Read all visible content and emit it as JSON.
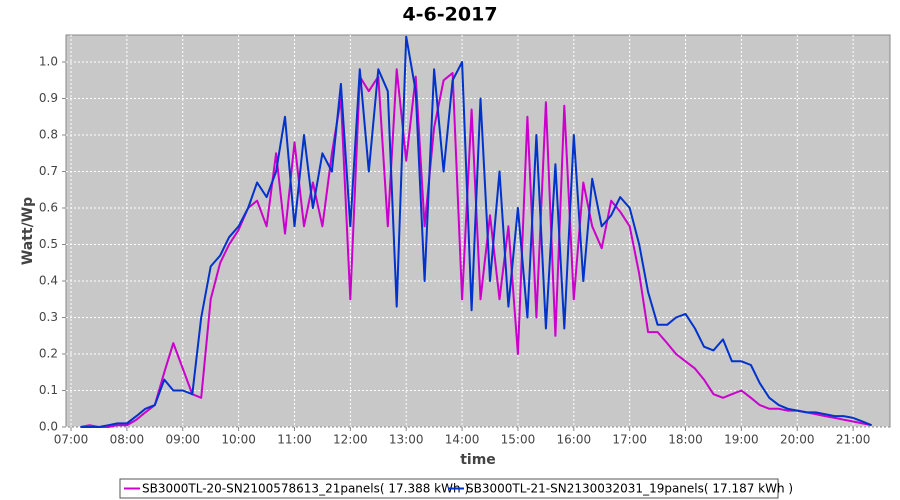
{
  "chart_data": {
    "type": "line",
    "title": "4-6-2017",
    "x_label": "time",
    "y_label": "Watt/Wp",
    "x": [
      7.17,
      7.33,
      7.5,
      7.67,
      7.83,
      8.0,
      8.17,
      8.33,
      8.5,
      8.67,
      8.83,
      9.0,
      9.17,
      9.33,
      9.5,
      9.67,
      9.83,
      10.0,
      10.17,
      10.33,
      10.5,
      10.67,
      10.83,
      11.0,
      11.17,
      11.33,
      11.5,
      11.67,
      11.83,
      12.0,
      12.17,
      12.33,
      12.5,
      12.67,
      12.83,
      13.0,
      13.17,
      13.33,
      13.5,
      13.67,
      13.83,
      14.0,
      14.17,
      14.33,
      14.5,
      14.67,
      14.83,
      15.0,
      15.17,
      15.33,
      15.5,
      15.67,
      15.83,
      16.0,
      16.17,
      16.33,
      16.5,
      16.67,
      16.83,
      17.0,
      17.17,
      17.33,
      17.5,
      17.67,
      17.83,
      18.0,
      18.17,
      18.33,
      18.5,
      18.67,
      18.83,
      19.0,
      19.17,
      19.33,
      19.5,
      19.67,
      19.83,
      20.0,
      20.17,
      20.33,
      20.5,
      20.67,
      20.83,
      21.0,
      21.17,
      21.33
    ],
    "series": [
      {
        "name": "SB3000TL-20-SN2100578613_21panels( 17.388 kWh )",
        "color": "#cc00cc",
        "values": [
          0.0,
          0.005,
          0.0,
          0.0,
          0.005,
          0.005,
          0.02,
          0.04,
          0.06,
          0.15,
          0.23,
          0.16,
          0.09,
          0.08,
          0.35,
          0.45,
          0.5,
          0.54,
          0.6,
          0.62,
          0.55,
          0.75,
          0.53,
          0.78,
          0.55,
          0.67,
          0.55,
          0.75,
          0.9,
          0.35,
          0.96,
          0.92,
          0.96,
          0.55,
          0.98,
          0.73,
          0.96,
          0.55,
          0.82,
          0.95,
          0.97,
          0.35,
          0.87,
          0.35,
          0.58,
          0.35,
          0.55,
          0.2,
          0.85,
          0.3,
          0.89,
          0.25,
          0.88,
          0.35,
          0.67,
          0.55,
          0.49,
          0.62,
          0.59,
          0.55,
          0.42,
          0.26,
          0.26,
          0.23,
          0.2,
          0.18,
          0.16,
          0.13,
          0.09,
          0.08,
          0.09,
          0.1,
          0.08,
          0.06,
          0.05,
          0.05,
          0.045,
          0.045,
          0.04,
          0.035,
          0.03,
          0.025,
          0.02,
          0.015,
          0.01,
          0.005
        ]
      },
      {
        "name": "SB3000TL-21-SN2130032031_19panels( 17.187 kWh )",
        "color": "#0033cc",
        "values": [
          0.0,
          0.0,
          0.0,
          0.005,
          0.01,
          0.01,
          0.03,
          0.05,
          0.06,
          0.13,
          0.1,
          0.1,
          0.09,
          0.3,
          0.44,
          0.47,
          0.52,
          0.55,
          0.6,
          0.67,
          0.63,
          0.7,
          0.85,
          0.55,
          0.8,
          0.6,
          0.75,
          0.7,
          0.94,
          0.55,
          0.98,
          0.7,
          0.98,
          0.92,
          0.33,
          1.07,
          0.92,
          0.4,
          0.98,
          0.7,
          0.95,
          1.0,
          0.32,
          0.9,
          0.4,
          0.7,
          0.33,
          0.6,
          0.3,
          0.8,
          0.27,
          0.72,
          0.27,
          0.8,
          0.4,
          0.68,
          0.55,
          0.58,
          0.63,
          0.6,
          0.5,
          0.37,
          0.28,
          0.28,
          0.3,
          0.31,
          0.27,
          0.22,
          0.21,
          0.24,
          0.18,
          0.18,
          0.17,
          0.12,
          0.08,
          0.06,
          0.05,
          0.045,
          0.04,
          0.04,
          0.035,
          0.03,
          0.03,
          0.025,
          0.015,
          0.005
        ]
      }
    ],
    "xlim": [
      6.91,
      21.66
    ],
    "xticks": [
      {
        "value": 7,
        "label": "07:00"
      },
      {
        "value": 8,
        "label": "08:00"
      },
      {
        "value": 9,
        "label": "09:00"
      },
      {
        "value": 10,
        "label": "10:00"
      },
      {
        "value": 11,
        "label": "11:00"
      },
      {
        "value": 12,
        "label": "12:00"
      },
      {
        "value": 13,
        "label": "13:00"
      },
      {
        "value": 14,
        "label": "14:00"
      },
      {
        "value": 15,
        "label": "15:00"
      },
      {
        "value": 16,
        "label": "16:00"
      },
      {
        "value": 17,
        "label": "17:00"
      },
      {
        "value": 18,
        "label": "18:00"
      },
      {
        "value": 19,
        "label": "19:00"
      },
      {
        "value": 20,
        "label": "20:00"
      },
      {
        "value": 21,
        "label": "21:00"
      }
    ],
    "ylim": [
      0,
      1.074
    ],
    "yticks": [
      {
        "value": 0,
        "label": "0.0"
      },
      0.1,
      0.2,
      0.3,
      0.4,
      0.5,
      0.6,
      0.7,
      0.8,
      0.9,
      {
        "value": 1,
        "label": "1.0"
      }
    ],
    "grid": true,
    "legend": "bottom"
  }
}
